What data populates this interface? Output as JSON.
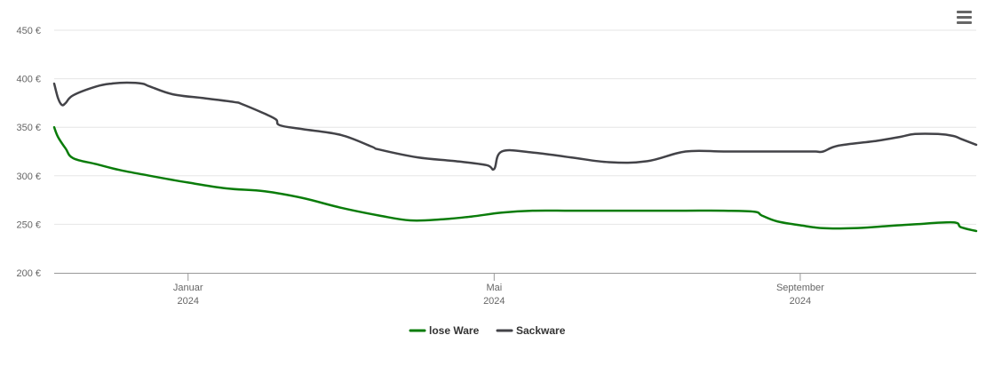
{
  "menu": {
    "icon": "hamburger-menu-icon"
  },
  "chart_data": {
    "type": "line",
    "title": "",
    "xlabel": "",
    "ylabel": "",
    "ylim": [
      200,
      450
    ],
    "y_ticks": [
      "200 €",
      "250 €",
      "300 €",
      "350 €",
      "400 €",
      "450 €"
    ],
    "y_tick_values": [
      200,
      250,
      300,
      350,
      400,
      450
    ],
    "x_ticks": [
      {
        "label": "Januar",
        "year": "2024",
        "value": 4.5
      },
      {
        "label": "Mai",
        "year": "2024",
        "value": 8.5
      },
      {
        "label": "September",
        "year": "2024",
        "value": 12.5
      }
    ],
    "xlim": [
      2.75,
      14.8
    ],
    "grid": true,
    "legend_position": "bottom-center",
    "series": [
      {
        "name": "lose Ware",
        "color": "#0a7c0a",
        "x": [
          2.75,
          2.8,
          2.9,
          3.0,
          3.3,
          3.6,
          4.0,
          4.5,
          5.0,
          5.5,
          6.0,
          6.5,
          7.0,
          7.4,
          7.8,
          8.2,
          8.6,
          9.0,
          9.5,
          10.0,
          10.5,
          11.0,
          11.5,
          11.9,
          12.0,
          12.2,
          12.5,
          12.8,
          13.2,
          13.6,
          14.0,
          14.5,
          14.6,
          14.8
        ],
        "values": [
          350,
          340,
          328,
          318,
          312,
          306,
          300,
          293,
          287,
          284,
          277,
          267,
          259,
          254,
          255,
          258,
          262,
          264,
          264,
          264,
          264,
          264,
          264,
          263,
          259,
          253,
          249,
          246,
          246,
          248,
          250,
          252,
          247,
          243
        ]
      },
      {
        "name": "Sackware",
        "color": "#434348",
        "x": [
          2.75,
          2.8,
          2.85,
          2.9,
          3.0,
          3.3,
          3.5,
          3.7,
          3.9,
          4.0,
          4.3,
          4.7,
          5.1,
          5.2,
          5.5,
          5.65,
          5.7,
          6.0,
          6.5,
          6.9,
          7.0,
          7.5,
          8.0,
          8.4,
          8.5,
          8.6,
          9.0,
          9.5,
          10.0,
          10.5,
          11.0,
          11.5,
          12.0,
          12.5,
          12.7,
          12.8,
          13.0,
          13.5,
          13.8,
          14.0,
          14.3,
          14.5,
          14.6,
          14.8
        ],
        "values": [
          395,
          380,
          373,
          375,
          383,
          392,
          395,
          396,
          395,
          392,
          384,
          380,
          376,
          374,
          364,
          358,
          352,
          348,
          342,
          330,
          327,
          319,
          315,
          311,
          307,
          325,
          324,
          319,
          314,
          315,
          325,
          325,
          325,
          325,
          325,
          325,
          331,
          336,
          340,
          343,
          343,
          341,
          338,
          332
        ]
      }
    ]
  }
}
